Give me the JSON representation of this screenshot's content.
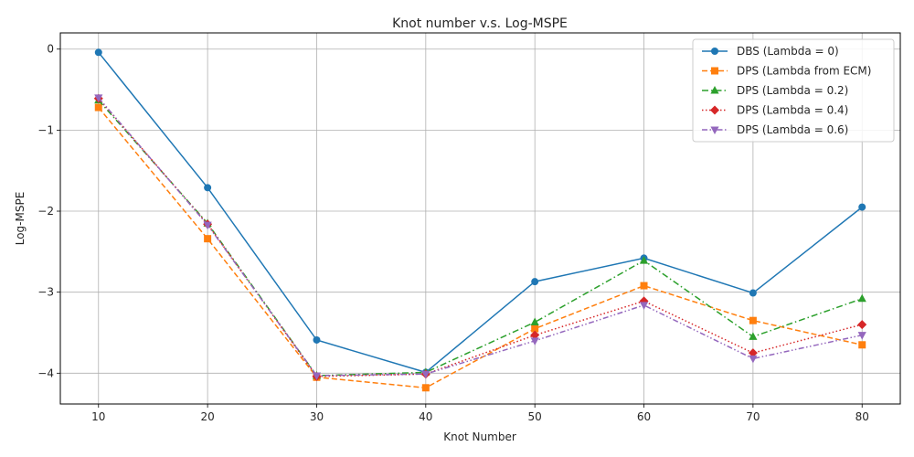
{
  "chart_data": {
    "type": "line",
    "title": "Knot number v.s. Log-MSPE",
    "xlabel": "Knot Number",
    "ylabel": "Log-MSPE",
    "x": [
      10,
      20,
      30,
      40,
      50,
      60,
      70,
      80
    ],
    "xticks": [
      10,
      20,
      30,
      40,
      50,
      60,
      70,
      80
    ],
    "yticks": [
      0,
      -1,
      -2,
      -3,
      -4
    ],
    "ytick_labels": [
      "0",
      "−1",
      "−2",
      "−3",
      "−4"
    ],
    "xlim": [
      6.5,
      83.5
    ],
    "ylim": [
      -4.38,
      0.2
    ],
    "grid": true,
    "legend_position": "top-right",
    "series": [
      {
        "name": "DBS (Lambda = 0)",
        "color": "#1f77b4",
        "linestyle": "solid",
        "marker": "circle",
        "values": [
          -0.04,
          -1.71,
          -3.59,
          -3.99,
          -2.87,
          -2.58,
          -3.01,
          -1.95
        ]
      },
      {
        "name": "DPS (Lambda from ECM)",
        "color": "#ff7f0e",
        "linestyle": "dashed",
        "marker": "square",
        "values": [
          -0.72,
          -2.34,
          -4.05,
          -4.18,
          -3.45,
          -2.92,
          -3.35,
          -3.65
        ]
      },
      {
        "name": "DPS (Lambda = 0.2)",
        "color": "#2ca02c",
        "linestyle": "dashdot",
        "marker": "triangle-up",
        "values": [
          -0.63,
          -2.15,
          -4.03,
          -3.99,
          -3.37,
          -2.61,
          -3.55,
          -3.08
        ]
      },
      {
        "name": "DPS (Lambda = 0.4)",
        "color": "#d62728",
        "linestyle": "dotted",
        "marker": "diamond",
        "values": [
          -0.61,
          -2.16,
          -4.04,
          -4.01,
          -3.53,
          -3.11,
          -3.75,
          -3.4
        ]
      },
      {
        "name": "DPS (Lambda = 0.6)",
        "color": "#9467bd",
        "linestyle": "dashdotdot",
        "marker": "triangle-down",
        "values": [
          -0.6,
          -2.17,
          -4.03,
          -4.01,
          -3.6,
          -3.16,
          -3.82,
          -3.53
        ]
      }
    ]
  }
}
